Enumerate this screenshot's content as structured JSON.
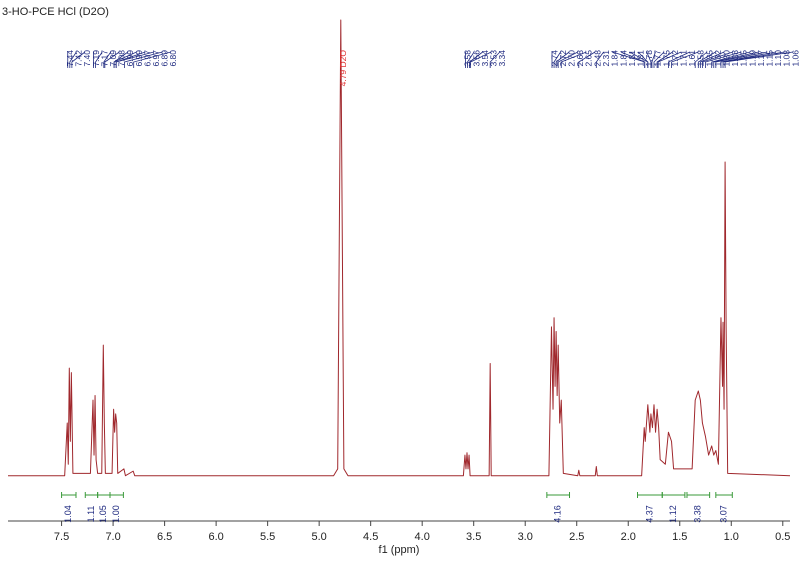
{
  "chart_data": {
    "type": "line",
    "title": "3-HO-PCE HCl (D2O)",
    "x_label": "f1 (ppm)",
    "xlim": [
      8.02,
      0.43
    ],
    "ylim": [
      0,
      100
    ],
    "xticks": [
      7.5,
      {
        "value": 7,
        "label": "7.0"
      },
      6.5,
      {
        "value": 6,
        "label": "6.0"
      },
      5.5,
      {
        "value": 5,
        "label": "5.0"
      },
      4.5,
      {
        "value": 4,
        "label": "4.0"
      },
      3.5,
      {
        "value": 3,
        "label": "3.0"
      },
      2.5,
      {
        "value": 2,
        "label": "2.0"
      },
      1.5,
      {
        "value": 1,
        "label": "1.0"
      },
      0.5
    ],
    "series": [
      {
        "color": "#a0282d",
        "x": [
          8.02,
          7.47,
          7.445,
          7.435,
          7.425,
          7.415,
          7.405,
          7.39,
          7.22,
          7.195,
          7.185,
          7.175,
          7.165,
          7.15,
          7.11,
          7.095,
          7.085,
          7.075,
          7.01,
          6.995,
          6.985,
          6.975,
          6.965,
          6.955,
          6.895,
          6.88,
          6.805,
          6.79,
          4.86,
          4.82,
          4.79,
          4.76,
          4.72,
          3.6,
          3.585,
          3.575,
          3.565,
          3.555,
          3.545,
          3.535,
          3.35,
          3.34,
          3.33,
          2.77,
          2.745,
          2.73,
          2.72,
          2.71,
          2.7,
          2.69,
          2.68,
          2.665,
          2.65,
          2.63,
          2.49,
          2.48,
          2.47,
          2.32,
          2.31,
          2.3,
          1.87,
          1.845,
          1.835,
          1.81,
          1.79,
          1.78,
          1.765,
          1.75,
          1.735,
          1.72,
          1.705,
          1.69,
          1.64,
          1.61,
          1.58,
          1.56,
          1.38,
          1.35,
          1.32,
          1.3,
          1.28,
          1.25,
          1.22,
          1.19,
          1.17,
          1.15,
          1.125,
          1.1,
          1.085,
          1.08,
          1.07,
          1.06,
          1.05,
          1.035,
          0.43
        ],
        "values": [
          0.5,
          0.5,
          12,
          3,
          24,
          8,
          23,
          1,
          1,
          17,
          5,
          18,
          4,
          1,
          1,
          29,
          12,
          1,
          1,
          15,
          10,
          14,
          12,
          1,
          2,
          0.5,
          1.5,
          0.5,
          0.5,
          2,
          100,
          2,
          0.5,
          0.5,
          5,
          2,
          5.5,
          2,
          5,
          0.5,
          0.5,
          25,
          0.5,
          0.5,
          33,
          15,
          35,
          20,
          32,
          18,
          29,
          12,
          17,
          1,
          0.5,
          1.7,
          0.5,
          0.5,
          2.5,
          0.5,
          0.5,
          11,
          8,
          16,
          10,
          14,
          11,
          16,
          10,
          15,
          11,
          4,
          3,
          10,
          8,
          2,
          2,
          17,
          19,
          17,
          12,
          9,
          5,
          7,
          5,
          6,
          3,
          35,
          20,
          34,
          15,
          69,
          33,
          1,
          0.5
        ]
      }
    ],
    "peak_labels": [
      7.44,
      7.42,
      {
        "value": 7.4,
        "label": "7.40"
      },
      7.19,
      7.17,
      7.09,
      7.08,
      6.99,
      6.99,
      6.97,
      6.97,
      6.89,
      {
        "value": 6.8,
        "label": "6.80"
      },
      {
        "value": 4.79,
        "label": "4.79 D2O"
      },
      3.58,
      3.56,
      3.54,
      3.53,
      3.34,
      2.74,
      2.72,
      {
        "value": 2.7,
        "label": "2.70"
      },
      2.68,
      2.65,
      2.48,
      2.31,
      1.84,
      1.84,
      1.81,
      1.81,
      1.78,
      1.77,
      1.75,
      1.72,
      1.71,
      1.61,
      1.58,
      1.35,
      1.32,
      {
        "value": 1.3,
        "label": "1.30"
      },
      1.28,
      1.25,
      1.19,
      1.17,
      1.15,
      {
        "value": 1.1,
        "label": "1.10"
      },
      1.08,
      1.06
    ],
    "integrals": {
      "ranges": [
        [
          7.5,
          7.36
        ],
        [
          7.27,
          7.15
        ],
        [
          7.15,
          7.03
        ],
        [
          7.03,
          6.9
        ],
        [
          2.79,
          2.57
        ],
        [
          1.91,
          1.67
        ],
        [
          1.67,
          1.45
        ],
        [
          1.43,
          1.21
        ],
        [
          1.15,
          0.99
        ]
      ],
      "values": [
        1.04,
        1.11,
        1.05,
        1,
        4.16,
        4.37,
        1.12,
        3.38,
        3.07
      ],
      "value_labels": [
        "1.04",
        "1.11",
        "1.05",
        "1.00",
        "4.16",
        "4.37",
        "1.12",
        "3.38",
        "3.07"
      ],
      "color": "#3a9a3a"
    }
  }
}
